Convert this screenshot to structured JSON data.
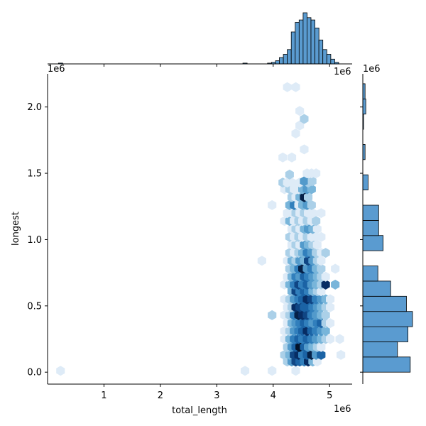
{
  "chart_data": {
    "type": "hexbin",
    "xlabel": "total_length",
    "ylabel": "longest",
    "x_offset_label": "1e6",
    "y_offset_label": "1e6",
    "x_ticks": [
      1,
      2,
      3,
      4,
      5
    ],
    "x_tick_labels": [
      "1",
      "2",
      "3",
      "4",
      "5"
    ],
    "y_ticks": [
      0.0,
      0.5,
      1.0,
      1.5,
      2.0
    ],
    "y_tick_labels": [
      "0.0",
      "0.5",
      "1.0",
      "1.5",
      "2.0"
    ],
    "xlim": [
      0.0,
      5.4
    ],
    "ylim": [
      -0.09,
      2.25
    ],
    "colors": {
      "hex": "#1f77b4",
      "hist_fill": "#5a9bd0",
      "hist_edge": "#000000"
    },
    "hexbins": [
      {
        "x": 0.23,
        "y": 0.01,
        "n": 1
      },
      {
        "x": 3.5,
        "y": 0.01,
        "n": 1
      },
      {
        "x": 3.98,
        "y": 0.01,
        "n": 1
      },
      {
        "x": 4.4,
        "y": 0.01,
        "n": 1
      },
      {
        "x": 4.25,
        "y": 0.08,
        "n": 2
      },
      {
        "x": 4.33,
        "y": 0.08,
        "n": 4
      },
      {
        "x": 4.4,
        "y": 0.08,
        "n": 7
      },
      {
        "x": 4.47,
        "y": 0.08,
        "n": 6
      },
      {
        "x": 4.55,
        "y": 0.08,
        "n": 5
      },
      {
        "x": 4.62,
        "y": 0.08,
        "n": 8
      },
      {
        "x": 4.7,
        "y": 0.08,
        "n": 3
      },
      {
        "x": 4.78,
        "y": 0.08,
        "n": 1
      },
      {
        "x": 4.2,
        "y": 0.13,
        "n": 2
      },
      {
        "x": 4.29,
        "y": 0.13,
        "n": 3
      },
      {
        "x": 4.37,
        "y": 0.13,
        "n": 7
      },
      {
        "x": 4.45,
        "y": 0.13,
        "n": 8
      },
      {
        "x": 4.52,
        "y": 0.13,
        "n": 5
      },
      {
        "x": 4.6,
        "y": 0.13,
        "n": 6
      },
      {
        "x": 4.68,
        "y": 0.13,
        "n": 9
      },
      {
        "x": 4.76,
        "y": 0.13,
        "n": 4
      },
      {
        "x": 4.85,
        "y": 0.13,
        "n": 6
      },
      {
        "x": 5.2,
        "y": 0.13,
        "n": 1
      },
      {
        "x": 4.25,
        "y": 0.19,
        "n": 2
      },
      {
        "x": 4.33,
        "y": 0.19,
        "n": 4
      },
      {
        "x": 4.4,
        "y": 0.19,
        "n": 6
      },
      {
        "x": 4.47,
        "y": 0.19,
        "n": 10
      },
      {
        "x": 4.55,
        "y": 0.19,
        "n": 6
      },
      {
        "x": 4.62,
        "y": 0.19,
        "n": 4
      },
      {
        "x": 4.7,
        "y": 0.19,
        "n": 3
      },
      {
        "x": 4.78,
        "y": 0.19,
        "n": 2
      },
      {
        "x": 4.85,
        "y": 0.19,
        "n": 1
      },
      {
        "x": 4.2,
        "y": 0.25,
        "n": 1
      },
      {
        "x": 4.29,
        "y": 0.25,
        "n": 3
      },
      {
        "x": 4.37,
        "y": 0.25,
        "n": 5
      },
      {
        "x": 4.45,
        "y": 0.25,
        "n": 6
      },
      {
        "x": 4.52,
        "y": 0.25,
        "n": 5
      },
      {
        "x": 4.6,
        "y": 0.25,
        "n": 6
      },
      {
        "x": 4.68,
        "y": 0.25,
        "n": 5
      },
      {
        "x": 4.76,
        "y": 0.25,
        "n": 4
      },
      {
        "x": 4.85,
        "y": 0.25,
        "n": 3
      },
      {
        "x": 4.93,
        "y": 0.25,
        "n": 2
      },
      {
        "x": 5.01,
        "y": 0.25,
        "n": 1
      },
      {
        "x": 5.18,
        "y": 0.25,
        "n": 1
      },
      {
        "x": 4.2,
        "y": 0.31,
        "n": 1
      },
      {
        "x": 4.29,
        "y": 0.31,
        "n": 2
      },
      {
        "x": 4.37,
        "y": 0.31,
        "n": 4
      },
      {
        "x": 4.45,
        "y": 0.31,
        "n": 5
      },
      {
        "x": 4.52,
        "y": 0.31,
        "n": 6
      },
      {
        "x": 4.6,
        "y": 0.31,
        "n": 8
      },
      {
        "x": 4.68,
        "y": 0.31,
        "n": 6
      },
      {
        "x": 4.76,
        "y": 0.31,
        "n": 5
      },
      {
        "x": 4.85,
        "y": 0.31,
        "n": 4
      },
      {
        "x": 4.93,
        "y": 0.31,
        "n": 3
      },
      {
        "x": 4.25,
        "y": 0.37,
        "n": 1
      },
      {
        "x": 4.33,
        "y": 0.37,
        "n": 3
      },
      {
        "x": 4.4,
        "y": 0.37,
        "n": 4
      },
      {
        "x": 4.47,
        "y": 0.37,
        "n": 5
      },
      {
        "x": 4.55,
        "y": 0.37,
        "n": 6
      },
      {
        "x": 4.62,
        "y": 0.37,
        "n": 5
      },
      {
        "x": 4.7,
        "y": 0.37,
        "n": 4
      },
      {
        "x": 4.78,
        "y": 0.37,
        "n": 5
      },
      {
        "x": 4.85,
        "y": 0.37,
        "n": 6
      },
      {
        "x": 4.93,
        "y": 0.37,
        "n": 2
      },
      {
        "x": 5.01,
        "y": 0.37,
        "n": 1
      },
      {
        "x": 3.98,
        "y": 0.43,
        "n": 2
      },
      {
        "x": 4.2,
        "y": 0.43,
        "n": 1
      },
      {
        "x": 4.29,
        "y": 0.43,
        "n": 2
      },
      {
        "x": 4.37,
        "y": 0.43,
        "n": 5
      },
      {
        "x": 4.45,
        "y": 0.43,
        "n": 9
      },
      {
        "x": 4.52,
        "y": 0.43,
        "n": 8
      },
      {
        "x": 4.6,
        "y": 0.43,
        "n": 7
      },
      {
        "x": 4.68,
        "y": 0.43,
        "n": 5
      },
      {
        "x": 4.76,
        "y": 0.43,
        "n": 4
      },
      {
        "x": 4.85,
        "y": 0.43,
        "n": 3
      },
      {
        "x": 4.93,
        "y": 0.43,
        "n": 2
      },
      {
        "x": 4.25,
        "y": 0.49,
        "n": 1
      },
      {
        "x": 4.33,
        "y": 0.49,
        "n": 2
      },
      {
        "x": 4.4,
        "y": 0.49,
        "n": 8
      },
      {
        "x": 4.47,
        "y": 0.49,
        "n": 7
      },
      {
        "x": 4.55,
        "y": 0.49,
        "n": 6
      },
      {
        "x": 4.62,
        "y": 0.49,
        "n": 6
      },
      {
        "x": 4.7,
        "y": 0.49,
        "n": 5
      },
      {
        "x": 4.78,
        "y": 0.49,
        "n": 4
      },
      {
        "x": 4.85,
        "y": 0.49,
        "n": 3
      },
      {
        "x": 4.93,
        "y": 0.49,
        "n": 2
      },
      {
        "x": 5.01,
        "y": 0.49,
        "n": 1
      },
      {
        "x": 4.2,
        "y": 0.55,
        "n": 1
      },
      {
        "x": 4.29,
        "y": 0.55,
        "n": 2
      },
      {
        "x": 4.37,
        "y": 0.55,
        "n": 4
      },
      {
        "x": 4.45,
        "y": 0.55,
        "n": 5
      },
      {
        "x": 4.52,
        "y": 0.55,
        "n": 6
      },
      {
        "x": 4.6,
        "y": 0.55,
        "n": 8
      },
      {
        "x": 4.68,
        "y": 0.55,
        "n": 7
      },
      {
        "x": 4.76,
        "y": 0.55,
        "n": 5
      },
      {
        "x": 4.85,
        "y": 0.55,
        "n": 4
      },
      {
        "x": 4.93,
        "y": 0.55,
        "n": 3
      },
      {
        "x": 5.01,
        "y": 0.55,
        "n": 1
      },
      {
        "x": 4.33,
        "y": 0.61,
        "n": 3
      },
      {
        "x": 4.4,
        "y": 0.61,
        "n": 7
      },
      {
        "x": 4.47,
        "y": 0.61,
        "n": 5
      },
      {
        "x": 4.55,
        "y": 0.61,
        "n": 6
      },
      {
        "x": 4.62,
        "y": 0.61,
        "n": 5
      },
      {
        "x": 4.7,
        "y": 0.61,
        "n": 3
      },
      {
        "x": 4.78,
        "y": 0.61,
        "n": 2
      },
      {
        "x": 4.85,
        "y": 0.61,
        "n": 1
      },
      {
        "x": 4.2,
        "y": 0.66,
        "n": 1
      },
      {
        "x": 4.29,
        "y": 0.66,
        "n": 3
      },
      {
        "x": 4.37,
        "y": 0.66,
        "n": 5
      },
      {
        "x": 4.45,
        "y": 0.66,
        "n": 7
      },
      {
        "x": 4.52,
        "y": 0.66,
        "n": 5
      },
      {
        "x": 4.6,
        "y": 0.66,
        "n": 6
      },
      {
        "x": 4.68,
        "y": 0.66,
        "n": 4
      },
      {
        "x": 4.76,
        "y": 0.66,
        "n": 3
      },
      {
        "x": 4.85,
        "y": 0.66,
        "n": 2
      },
      {
        "x": 4.93,
        "y": 0.66,
        "n": 8
      },
      {
        "x": 5.1,
        "y": 0.66,
        "n": 3
      },
      {
        "x": 4.25,
        "y": 0.72,
        "n": 1
      },
      {
        "x": 4.33,
        "y": 0.72,
        "n": 3
      },
      {
        "x": 4.4,
        "y": 0.72,
        "n": 5
      },
      {
        "x": 4.47,
        "y": 0.72,
        "n": 4
      },
      {
        "x": 4.55,
        "y": 0.72,
        "n": 6
      },
      {
        "x": 4.62,
        "y": 0.72,
        "n": 5
      },
      {
        "x": 4.7,
        "y": 0.72,
        "n": 4
      },
      {
        "x": 4.78,
        "y": 0.72,
        "n": 3
      },
      {
        "x": 4.85,
        "y": 0.72,
        "n": 2
      },
      {
        "x": 4.93,
        "y": 0.72,
        "n": 1
      },
      {
        "x": 4.29,
        "y": 0.78,
        "n": 2
      },
      {
        "x": 4.37,
        "y": 0.78,
        "n": 3
      },
      {
        "x": 4.45,
        "y": 0.78,
        "n": 5
      },
      {
        "x": 4.52,
        "y": 0.78,
        "n": 9
      },
      {
        "x": 4.6,
        "y": 0.78,
        "n": 4
      },
      {
        "x": 4.68,
        "y": 0.78,
        "n": 5
      },
      {
        "x": 4.76,
        "y": 0.78,
        "n": 3
      },
      {
        "x": 4.85,
        "y": 0.78,
        "n": 2
      },
      {
        "x": 5.1,
        "y": 0.78,
        "n": 1
      },
      {
        "x": 3.8,
        "y": 0.84,
        "n": 1
      },
      {
        "x": 4.25,
        "y": 0.84,
        "n": 1
      },
      {
        "x": 4.33,
        "y": 0.84,
        "n": 3
      },
      {
        "x": 4.4,
        "y": 0.84,
        "n": 2
      },
      {
        "x": 4.47,
        "y": 0.84,
        "n": 4
      },
      {
        "x": 4.55,
        "y": 0.84,
        "n": 3
      },
      {
        "x": 4.62,
        "y": 0.84,
        "n": 7
      },
      {
        "x": 4.7,
        "y": 0.84,
        "n": 4
      },
      {
        "x": 4.78,
        "y": 0.84,
        "n": 2
      },
      {
        "x": 4.85,
        "y": 0.84,
        "n": 1
      },
      {
        "x": 4.29,
        "y": 0.9,
        "n": 2
      },
      {
        "x": 4.37,
        "y": 0.9,
        "n": 1
      },
      {
        "x": 4.45,
        "y": 0.9,
        "n": 2
      },
      {
        "x": 4.52,
        "y": 0.9,
        "n": 3
      },
      {
        "x": 4.6,
        "y": 0.9,
        "n": 5
      },
      {
        "x": 4.68,
        "y": 0.9,
        "n": 4
      },
      {
        "x": 4.76,
        "y": 0.9,
        "n": 2
      },
      {
        "x": 4.85,
        "y": 0.9,
        "n": 1
      },
      {
        "x": 4.93,
        "y": 0.9,
        "n": 2
      },
      {
        "x": 4.33,
        "y": 0.96,
        "n": 1
      },
      {
        "x": 4.4,
        "y": 0.96,
        "n": 2
      },
      {
        "x": 4.47,
        "y": 0.96,
        "n": 1
      },
      {
        "x": 4.55,
        "y": 0.96,
        "n": 4
      },
      {
        "x": 4.62,
        "y": 0.96,
        "n": 3
      },
      {
        "x": 4.7,
        "y": 0.96,
        "n": 2
      },
      {
        "x": 4.78,
        "y": 0.96,
        "n": 1
      },
      {
        "x": 4.29,
        "y": 1.02,
        "n": 2
      },
      {
        "x": 4.37,
        "y": 1.02,
        "n": 1
      },
      {
        "x": 4.45,
        "y": 1.02,
        "n": 2
      },
      {
        "x": 4.52,
        "y": 1.02,
        "n": 1
      },
      {
        "x": 4.6,
        "y": 1.02,
        "n": 2
      },
      {
        "x": 4.68,
        "y": 1.02,
        "n": 1
      },
      {
        "x": 4.76,
        "y": 1.02,
        "n": 1
      },
      {
        "x": 4.85,
        "y": 1.02,
        "n": 1
      },
      {
        "x": 4.33,
        "y": 1.08,
        "n": 1
      },
      {
        "x": 4.4,
        "y": 1.08,
        "n": 2
      },
      {
        "x": 4.47,
        "y": 1.08,
        "n": 1
      },
      {
        "x": 4.55,
        "y": 1.08,
        "n": 3
      },
      {
        "x": 4.62,
        "y": 1.08,
        "n": 4
      },
      {
        "x": 4.7,
        "y": 1.08,
        "n": 3
      },
      {
        "x": 4.78,
        "y": 1.08,
        "n": 1
      },
      {
        "x": 4.2,
        "y": 1.14,
        "n": 1
      },
      {
        "x": 4.29,
        "y": 1.14,
        "n": 3
      },
      {
        "x": 4.37,
        "y": 1.14,
        "n": 1
      },
      {
        "x": 4.45,
        "y": 1.14,
        "n": 2
      },
      {
        "x": 4.52,
        "y": 1.14,
        "n": 1
      },
      {
        "x": 4.6,
        "y": 1.14,
        "n": 2
      },
      {
        "x": 4.68,
        "y": 1.14,
        "n": 1
      },
      {
        "x": 4.76,
        "y": 1.14,
        "n": 2
      },
      {
        "x": 4.25,
        "y": 1.2,
        "n": 1
      },
      {
        "x": 4.33,
        "y": 1.2,
        "n": 1
      },
      {
        "x": 4.4,
        "y": 1.2,
        "n": 2
      },
      {
        "x": 4.47,
        "y": 1.2,
        "n": 1
      },
      {
        "x": 4.55,
        "y": 1.2,
        "n": 2
      },
      {
        "x": 4.62,
        "y": 1.2,
        "n": 1
      },
      {
        "x": 4.7,
        "y": 1.2,
        "n": 1
      },
      {
        "x": 4.85,
        "y": 1.2,
        "n": 1
      },
      {
        "x": 3.98,
        "y": 1.26,
        "n": 1
      },
      {
        "x": 4.29,
        "y": 1.26,
        "n": 3
      },
      {
        "x": 4.37,
        "y": 1.26,
        "n": 5
      },
      {
        "x": 4.45,
        "y": 1.26,
        "n": 1
      },
      {
        "x": 4.52,
        "y": 1.26,
        "n": 3
      },
      {
        "x": 4.6,
        "y": 1.26,
        "n": 4
      },
      {
        "x": 4.68,
        "y": 1.26,
        "n": 2
      },
      {
        "x": 4.33,
        "y": 1.32,
        "n": 2
      },
      {
        "x": 4.4,
        "y": 1.32,
        "n": 1
      },
      {
        "x": 4.47,
        "y": 1.32,
        "n": 3
      },
      {
        "x": 4.55,
        "y": 1.32,
        "n": 9
      },
      {
        "x": 4.62,
        "y": 1.32,
        "n": 2
      },
      {
        "x": 4.2,
        "y": 1.38,
        "n": 1
      },
      {
        "x": 4.29,
        "y": 1.38,
        "n": 2
      },
      {
        "x": 4.37,
        "y": 1.38,
        "n": 1
      },
      {
        "x": 4.45,
        "y": 1.38,
        "n": 1
      },
      {
        "x": 4.52,
        "y": 1.38,
        "n": 3
      },
      {
        "x": 4.6,
        "y": 1.38,
        "n": 4
      },
      {
        "x": 4.68,
        "y": 1.38,
        "n": 3
      },
      {
        "x": 4.17,
        "y": 1.43,
        "n": 2
      },
      {
        "x": 4.25,
        "y": 1.43,
        "n": 1
      },
      {
        "x": 4.33,
        "y": 1.43,
        "n": 1
      },
      {
        "x": 4.47,
        "y": 1.43,
        "n": 1
      },
      {
        "x": 4.62,
        "y": 1.43,
        "n": 2
      },
      {
        "x": 4.55,
        "y": 1.44,
        "n": 4
      },
      {
        "x": 4.69,
        "y": 1.44,
        "n": 2
      },
      {
        "x": 4.29,
        "y": 1.49,
        "n": 2
      },
      {
        "x": 4.6,
        "y": 1.5,
        "n": 1
      },
      {
        "x": 4.68,
        "y": 1.5,
        "n": 1
      },
      {
        "x": 4.76,
        "y": 1.5,
        "n": 1
      },
      {
        "x": 4.17,
        "y": 1.62,
        "n": 1
      },
      {
        "x": 4.33,
        "y": 1.62,
        "n": 1
      },
      {
        "x": 4.55,
        "y": 1.68,
        "n": 1
      },
      {
        "x": 4.4,
        "y": 1.8,
        "n": 1
      },
      {
        "x": 4.47,
        "y": 1.86,
        "n": 1
      },
      {
        "x": 4.55,
        "y": 1.91,
        "n": 2
      },
      {
        "x": 4.47,
        "y": 1.97,
        "n": 1
      },
      {
        "x": 4.25,
        "y": 2.15,
        "n": 1
      },
      {
        "x": 4.4,
        "y": 2.15,
        "n": 1
      }
    ],
    "marginal_x": {
      "bin_edges": [
        3.9,
        3.97,
        4.04,
        4.11,
        4.18,
        4.25,
        4.32,
        4.39,
        4.46,
        4.53,
        4.6,
        4.67,
        4.74,
        4.81,
        4.88,
        4.95,
        5.02,
        5.09,
        5.16
      ],
      "counts": [
        1,
        2,
        4,
        8,
        12,
        18,
        40,
        52,
        55,
        64,
        58,
        55,
        45,
        30,
        18,
        12,
        6,
        2
      ],
      "extra_points": [
        {
          "x": 0.23,
          "count": 1
        },
        {
          "x": 3.5,
          "count": 1
        }
      ]
    },
    "marginal_y": {
      "bin_edges": [
        0.0,
        0.1145,
        0.229,
        0.3435,
        0.458,
        0.5725,
        0.687,
        0.8015,
        0.916,
        1.0305,
        1.145,
        1.2595,
        1.374,
        1.4885,
        1.603,
        1.7175,
        1.832,
        1.9465,
        2.061,
        2.1755
      ],
      "counts": [
        63,
        46,
        60,
        66,
        58,
        37,
        20,
        0,
        27,
        21,
        21,
        0,
        7,
        0,
        3,
        0,
        1,
        4,
        3
      ]
    }
  }
}
